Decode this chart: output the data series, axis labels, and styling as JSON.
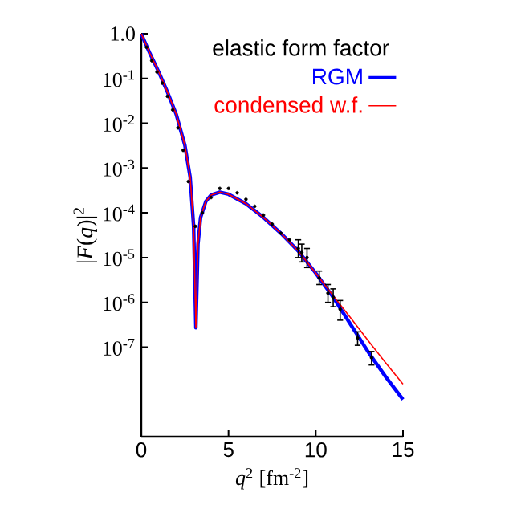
{
  "chart_data": {
    "type": "line",
    "legend_title": "elastic form factor",
    "xlabel": "*q*$^{2}$ [fm$^{-2}$]",
    "ylabel": "|*F*(*q*)|$^{2}$",
    "log": "y",
    "xlim": [
      0,
      15
    ],
    "ylim": [
      1e-09,
      1
    ],
    "xticks": [
      0,
      5,
      10,
      15
    ],
    "yticks": [
      {
        "value": 1,
        "label": "1.0"
      },
      {
        "value": 0.1,
        "label": "10$^{-1}$"
      },
      {
        "value": 0.01,
        "label": "10$^{-2}$"
      },
      {
        "value": 0.001,
        "label": "10$^{-3}$"
      },
      {
        "value": 0.0001,
        "label": "10$^{-4}$"
      },
      {
        "value": 1e-05,
        "label": "10$^{-5}$"
      },
      {
        "value": 1e-06,
        "label": "10$^{-6}$"
      },
      {
        "value": 1e-07,
        "label": "10$^{-7}$"
      }
    ],
    "legend": "top right",
    "grid": false,
    "series": [
      {
        "name": "RGM",
        "type": "line",
        "color": "#0000ff",
        "marker": "none",
        "x": [
          0,
          0.5,
          1,
          1.5,
          2,
          2.5,
          2.8,
          3.0,
          3.13,
          3.25,
          3.4,
          3.7,
          4.0,
          4.5,
          5,
          6,
          7,
          8,
          9,
          10,
          11,
          12,
          13,
          14,
          15
        ],
        "values": [
          1,
          0.36,
          0.14,
          0.05,
          0.016,
          0.0032,
          0.00063,
          5e-05,
          2.7e-07,
          2e-05,
          7.9e-05,
          0.00018,
          0.00025,
          0.00029,
          0.00026,
          0.00016,
          7.9e-05,
          3.5e-05,
          1.4e-05,
          4.5e-06,
          1.3e-06,
          3.2e-07,
          7.9e-08,
          2.2e-08,
          6.8e-09
        ]
      },
      {
        "name": "condensed w.f.",
        "type": "line",
        "color": "#ff0000",
        "marker": "none",
        "x": [
          0,
          0.5,
          1,
          1.5,
          2,
          2.5,
          2.8,
          3.0,
          3.13,
          3.25,
          3.4,
          3.7,
          4.0,
          4.5,
          5,
          6,
          7,
          8,
          9,
          10,
          11,
          12,
          13,
          14,
          15
        ],
        "values": [
          1,
          0.36,
          0.14,
          0.05,
          0.016,
          0.0032,
          0.00063,
          5e-05,
          2.7e-07,
          2e-05,
          7.9e-05,
          0.00018,
          0.00025,
          0.00029,
          0.00026,
          0.00016,
          7.9e-05,
          3.5e-05,
          1.4e-05,
          4.5e-06,
          1.4e-06,
          4.5e-07,
          1.4e-07,
          4.5e-08,
          1.5e-08
        ]
      },
      {
        "type": "scatter",
        "color": "#000000",
        "marker": "circle",
        "x": [
          0.3,
          0.6,
          0.9,
          1.2,
          1.5,
          1.8,
          2.1,
          2.4,
          2.7,
          3.1,
          3.5,
          4.0,
          4.5,
          5.0,
          5.5,
          6.0,
          6.5,
          7.0,
          7.5,
          8.0,
          8.5,
          9.0,
          9.2,
          9.5,
          10.2,
          10.7,
          11.0,
          11.4,
          12.4,
          13.2
        ],
        "values": [
          0.5,
          0.25,
          0.14,
          0.079,
          0.04,
          0.02,
          0.0079,
          0.0025,
          0.0005,
          5e-05,
          0.0001,
          0.00022,
          0.00035,
          0.00035,
          0.00028,
          0.0002,
          0.00014,
          8.9e-05,
          5.6e-05,
          3.5e-05,
          2.5e-05,
          1.6e-05,
          1.3e-05,
          1e-05,
          3.5e-06,
          1.6e-06,
          1.3e-06,
          7e-07,
          1.6e-07,
          5.8e-08
        ],
        "errors": [
          null,
          null,
          null,
          null,
          null,
          null,
          null,
          null,
          null,
          null,
          null,
          null,
          null,
          null,
          null,
          null,
          null,
          null,
          null,
          null,
          null,
          [
            1e-05,
            2.5e-05
          ],
          [
            8e-06,
            2e-05
          ],
          [
            6e-06,
            1.6e-05
          ],
          [
            2.5e-06,
            5e-06
          ],
          [
            1e-06,
            2.5e-06
          ],
          [
            8e-07,
            2e-06
          ],
          [
            4e-07,
            1.1e-06
          ],
          [
            1.1e-07,
            2.2e-07
          ],
          [
            4e-08,
            8e-08
          ]
        ]
      }
    ]
  }
}
